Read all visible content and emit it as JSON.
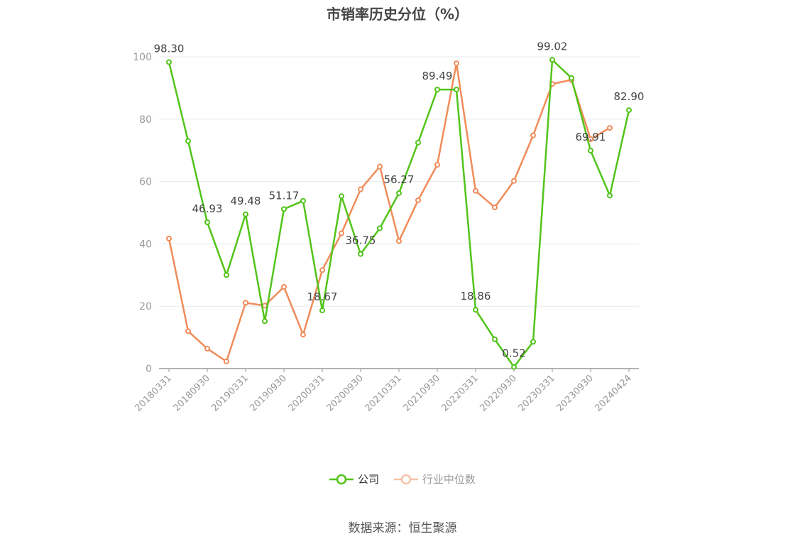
{
  "chart_data": {
    "type": "line",
    "title": "市销率历史分位（%）",
    "ylim": [
      0,
      100
    ],
    "yticks": [
      0,
      20,
      40,
      60,
      80,
      100
    ],
    "grid": true,
    "legend_position": "bottom",
    "x": [
      "20180331",
      "20180630",
      "20180930",
      "20181231",
      "20190331",
      "20190630",
      "20190930",
      "20191231",
      "20200331",
      "20200630",
      "20200930",
      "20201231",
      "20210331",
      "20210630",
      "20210930",
      "20211231",
      "20220331",
      "20220630",
      "20220930",
      "20221231",
      "20230331",
      "20230630",
      "20230930",
      "20231231",
      "20240424"
    ],
    "x_tick_labels": [
      "20180331",
      "20180930",
      "20190331",
      "20190930",
      "20200331",
      "20200930",
      "20210331",
      "20210930",
      "20220331",
      "20220930",
      "20230331",
      "20230930",
      "20240424"
    ],
    "series": [
      {
        "name": "公司",
        "color": "#52c41a",
        "values": [
          98.3,
          73.0,
          46.93,
          30.0,
          49.48,
          15.2,
          51.17,
          53.8,
          18.67,
          55.3,
          36.75,
          45.0,
          56.27,
          72.5,
          89.49,
          89.5,
          18.86,
          9.4,
          0.52,
          8.6,
          99.02,
          93.2,
          69.91,
          55.5,
          82.9
        ],
        "data_labels": {
          "0": "98.30",
          "2": "46.93",
          "4": "49.48",
          "6": "51.17",
          "8": "18.67",
          "10": "36.75",
          "12": "56.27",
          "14": "89.49",
          "16": "18.86",
          "18": "0.52",
          "20": "99.02",
          "22": "69.91",
          "24": "82.90"
        }
      },
      {
        "name": "行业中位数",
        "color": "#f08c5a",
        "values": [
          41.7,
          12.0,
          6.4,
          2.3,
          21.1,
          20.2,
          26.2,
          10.9,
          31.6,
          43.4,
          57.5,
          64.8,
          40.9,
          54.0,
          65.4,
          97.9,
          57.0,
          51.7,
          60.2,
          74.8,
          91.3,
          92.6,
          73.6,
          77.2,
          null
        ]
      }
    ]
  },
  "legend": {
    "company": "公司",
    "industry": "行业中位数"
  },
  "source_note": "数据来源：恒生聚源"
}
